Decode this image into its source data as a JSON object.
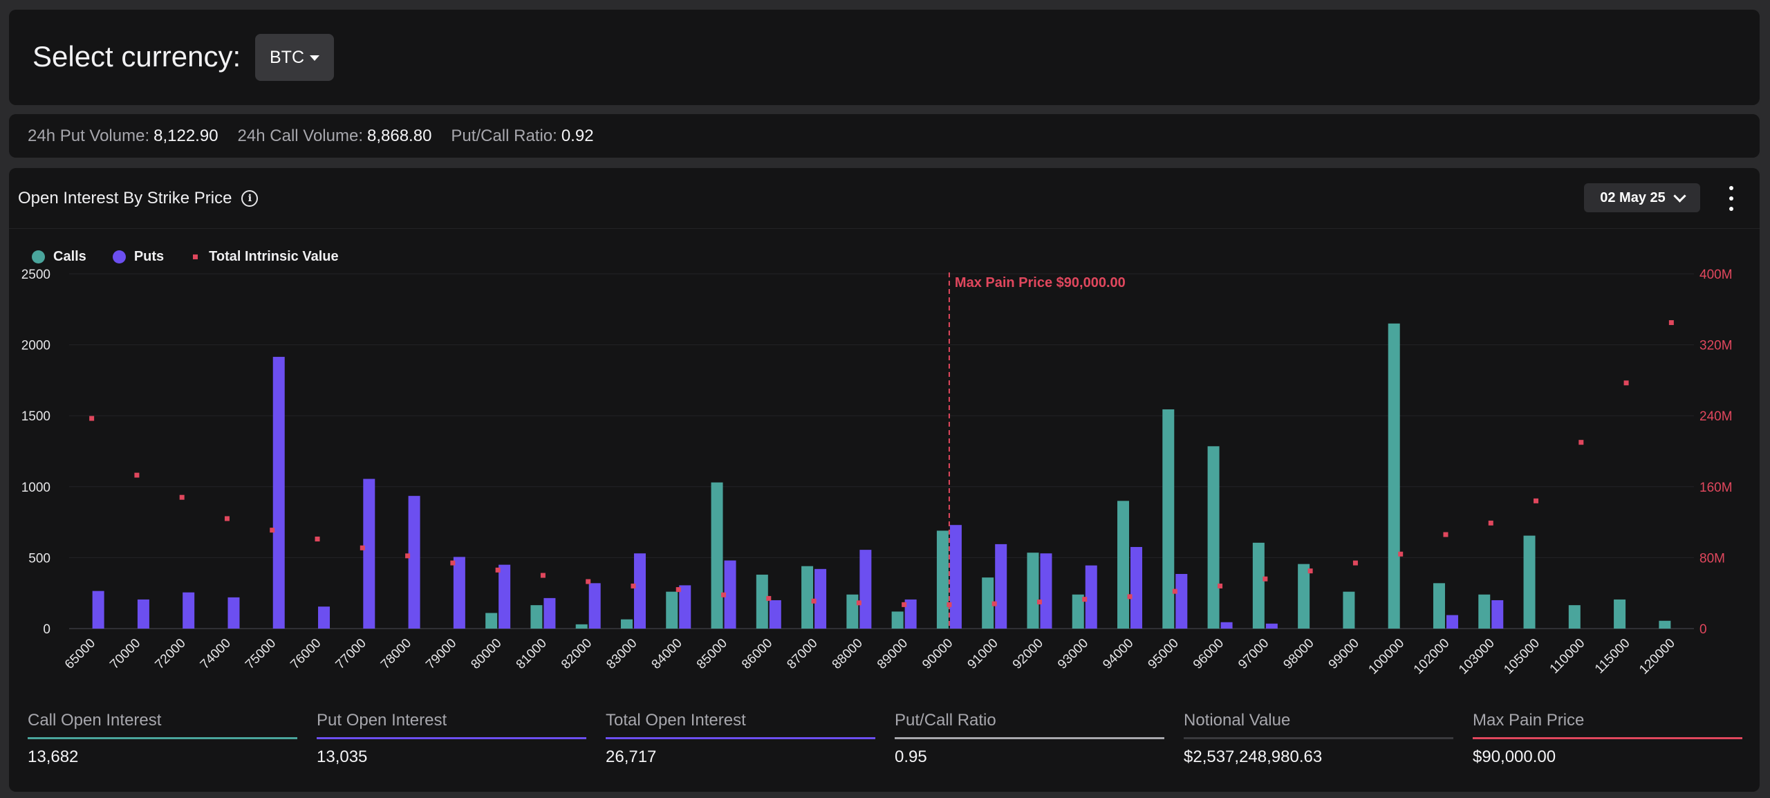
{
  "currency": {
    "label": "Select currency:",
    "selected": "BTC"
  },
  "stats": [
    {
      "key": "24h Put Volume:",
      "value": "8,122.90"
    },
    {
      "key": "24h Call Volume:",
      "value": "8,868.80"
    },
    {
      "key": "Put/Call Ratio:",
      "value": "0.92"
    }
  ],
  "chart_panel": {
    "title": "Open Interest By Strike Price",
    "info_icon": "info-icon",
    "date": "02 May 25",
    "menu_icon": "kebab-icon"
  },
  "colors": {
    "calls": "#4aa59c",
    "puts": "#6c4ff0",
    "intrinsic": "#e0475d",
    "grid": "#232326",
    "axis_left": "#e6e6e8",
    "axis_right": "#e0475d"
  },
  "chart_data": {
    "type": "bar",
    "title": "",
    "legend": [
      "Calls",
      "Puts",
      "Total Intrinsic Value"
    ],
    "legend_position": "top-left",
    "categories": [
      "65000",
      "70000",
      "72000",
      "74000",
      "75000",
      "76000",
      "77000",
      "78000",
      "79000",
      "80000",
      "81000",
      "82000",
      "83000",
      "84000",
      "85000",
      "86000",
      "87000",
      "88000",
      "89000",
      "90000",
      "91000",
      "92000",
      "93000",
      "94000",
      "95000",
      "96000",
      "97000",
      "98000",
      "99000",
      "100000",
      "102000",
      "103000",
      "105000",
      "110000",
      "115000",
      "120000"
    ],
    "series": [
      {
        "name": "Calls",
        "axis": "left",
        "values": [
          0,
          0,
          0,
          0,
          0,
          0,
          0,
          0,
          0,
          110,
          165,
          30,
          65,
          260,
          1030,
          380,
          440,
          240,
          120,
          690,
          360,
          535,
          240,
          900,
          1545,
          1285,
          605,
          455,
          260,
          2150,
          320,
          240,
          655,
          165,
          205,
          55
        ]
      },
      {
        "name": "Puts",
        "axis": "left",
        "values": [
          265,
          205,
          255,
          220,
          1915,
          155,
          1055,
          935,
          505,
          450,
          215,
          320,
          530,
          305,
          480,
          200,
          420,
          555,
          205,
          730,
          595,
          530,
          445,
          575,
          385,
          45,
          35,
          0,
          0,
          0,
          95,
          200,
          0,
          0,
          0,
          0
        ]
      },
      {
        "name": "Total Intrinsic Value",
        "axis": "right",
        "type": "scatter",
        "values": [
          237,
          173,
          148,
          124,
          111,
          101,
          91,
          82,
          74,
          66,
          60,
          53,
          48,
          44,
          38,
          34,
          31,
          29,
          27,
          27,
          28,
          30,
          33,
          36,
          42,
          48,
          56,
          65,
          74,
          84,
          106,
          119,
          144,
          210,
          277,
          345
        ]
      }
    ],
    "y_left": {
      "min": 0,
      "max": 2500,
      "ticks": [
        "0",
        "500",
        "1000",
        "1500",
        "2000",
        "2500"
      ]
    },
    "y_right": {
      "min": 0,
      "max": 400,
      "ticks": [
        "0",
        "80M",
        "160M",
        "240M",
        "320M",
        "400M"
      ]
    },
    "grid": true,
    "annotation": {
      "label": "Max Pain Price $90,000.00",
      "category": "90000"
    }
  },
  "metrics": [
    {
      "label": "Call Open Interest",
      "value": "13,682",
      "color": "#4aa59c"
    },
    {
      "label": "Put Open Interest",
      "value": "13,035",
      "color": "#6c4ff0"
    },
    {
      "label": "Total Open Interest",
      "value": "26,717",
      "color": "#6c4ff0"
    },
    {
      "label": "Put/Call Ratio",
      "value": "0.95",
      "color": "#a8a8ad"
    },
    {
      "label": "Notional Value",
      "value": "$2,537,248,980.63",
      "color": "#3a3a3d"
    },
    {
      "label": "Max Pain Price",
      "value": "$90,000.00",
      "color": "#e0475d"
    }
  ]
}
